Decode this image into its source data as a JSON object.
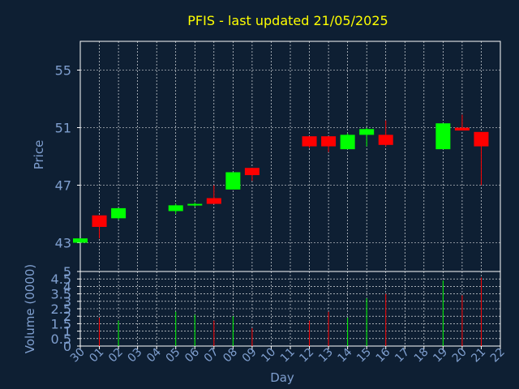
{
  "title": "PFIS - last updated 21/05/2025",
  "colors": {
    "background": "#0e1f33",
    "title": "#ffff00",
    "axis_text": "#7f9fcf",
    "grid": "#ffffff",
    "frame": "#ffffff",
    "up": "#00ff00",
    "down": "#ff0000"
  },
  "chart_data": [
    {
      "type": "candlestick",
      "ylabel": "Price",
      "ylim": [
        41,
        57
      ],
      "yticks": [
        43,
        47,
        51,
        55
      ],
      "grid": true,
      "x": [
        "30",
        "01",
        "02",
        "03",
        "04",
        "05",
        "06",
        "07",
        "08",
        "09",
        "10",
        "11",
        "12",
        "13",
        "14",
        "15",
        "16",
        "17",
        "18",
        "19",
        "20",
        "21",
        "22"
      ],
      "candles": [
        {
          "day": "30",
          "open": 43.0,
          "high": 43.3,
          "low": 43.0,
          "close": 43.3
        },
        {
          "day": "01",
          "open": 44.9,
          "high": 44.9,
          "low": 43.3,
          "close": 44.1
        },
        {
          "day": "02",
          "open": 44.7,
          "high": 45.4,
          "low": 44.6,
          "close": 45.4
        },
        {
          "day": "05",
          "open": 45.2,
          "high": 45.7,
          "low": 45.0,
          "close": 45.6
        },
        {
          "day": "06",
          "open": 45.6,
          "high": 45.8,
          "low": 45.5,
          "close": 45.7
        },
        {
          "day": "07",
          "open": 46.1,
          "high": 47.0,
          "low": 45.7,
          "close": 45.7
        },
        {
          "day": "08",
          "open": 46.7,
          "high": 47.9,
          "low": 46.7,
          "close": 47.9
        },
        {
          "day": "09",
          "open": 48.2,
          "high": 48.2,
          "low": 47.3,
          "close": 47.7
        },
        {
          "day": "12",
          "open": 50.4,
          "high": 50.4,
          "low": 49.6,
          "close": 49.7
        },
        {
          "day": "13",
          "open": 50.4,
          "high": 50.4,
          "low": 49.3,
          "close": 49.7
        },
        {
          "day": "14",
          "open": 49.5,
          "high": 50.6,
          "low": 49.5,
          "close": 50.5
        },
        {
          "day": "15",
          "open": 50.5,
          "high": 51.0,
          "low": 49.7,
          "close": 50.9
        },
        {
          "day": "16",
          "open": 50.5,
          "high": 51.5,
          "low": 49.7,
          "close": 49.8
        },
        {
          "day": "19",
          "open": 49.5,
          "high": 51.3,
          "low": 49.5,
          "close": 51.3
        },
        {
          "day": "20",
          "open": 51.0,
          "high": 51.9,
          "low": 50.8,
          "close": 50.8
        },
        {
          "day": "21",
          "open": 50.7,
          "high": 50.7,
          "low": 47.0,
          "close": 49.7
        }
      ]
    },
    {
      "type": "bar",
      "ylabel": "Volume (0000)",
      "xlabel": "Day",
      "ylim": [
        0,
        5
      ],
      "yticks": [
        "0",
        "0.5",
        "1",
        "1.5",
        "2",
        "2.5",
        "3",
        "3.5",
        "4",
        "4.5",
        "5"
      ],
      "grid": true,
      "x": [
        "30",
        "01",
        "02",
        "03",
        "04",
        "05",
        "06",
        "07",
        "08",
        "09",
        "10",
        "11",
        "12",
        "13",
        "14",
        "15",
        "16",
        "17",
        "18",
        "19",
        "20",
        "21",
        "22"
      ],
      "bars": [
        {
          "day": "01",
          "value": 1.9,
          "direction": "down"
        },
        {
          "day": "02",
          "value": 1.7,
          "direction": "up"
        },
        {
          "day": "05",
          "value": 2.3,
          "direction": "up"
        },
        {
          "day": "06",
          "value": 2.1,
          "direction": "up"
        },
        {
          "day": "07",
          "value": 1.7,
          "direction": "down"
        },
        {
          "day": "08",
          "value": 2.0,
          "direction": "up"
        },
        {
          "day": "09",
          "value": 1.2,
          "direction": "down"
        },
        {
          "day": "12",
          "value": 1.7,
          "direction": "down"
        },
        {
          "day": "13",
          "value": 2.3,
          "direction": "down"
        },
        {
          "day": "14",
          "value": 1.9,
          "direction": "up"
        },
        {
          "day": "15",
          "value": 3.2,
          "direction": "up"
        },
        {
          "day": "16",
          "value": 3.5,
          "direction": "down"
        },
        {
          "day": "19",
          "value": 4.4,
          "direction": "up"
        },
        {
          "day": "20",
          "value": 3.4,
          "direction": "down"
        },
        {
          "day": "21",
          "value": 4.6,
          "direction": "down"
        }
      ]
    }
  ]
}
